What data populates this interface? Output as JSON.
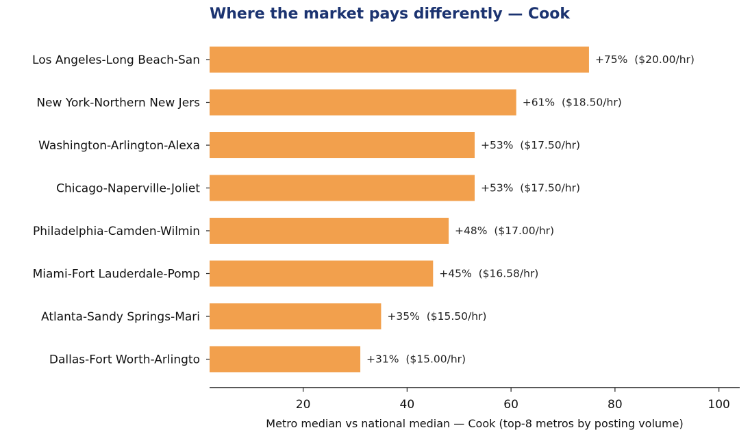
{
  "chart_data": {
    "type": "bar",
    "orientation": "horizontal",
    "title": "Where the market pays differently — Cook",
    "xlabel": "Metro median vs national median — Cook (top-8 metros by posting volume)",
    "ylabel": "",
    "xlim": [
      2,
      104
    ],
    "xticks": [
      20,
      40,
      60,
      80,
      100
    ],
    "grid": false,
    "bar_color": "#f2a04d",
    "title_color": "#1b3370",
    "categories": [
      "Los Angeles-Long Beach-San",
      "New York-Northern New Jers",
      "Washington-Arlington-Alexa",
      "Chicago-Naperville-Joliet",
      "Philadelphia-Camden-Wilmin",
      "Miami-Fort Lauderdale-Pomp",
      "Atlanta-Sandy Springs-Mari",
      "Dallas-Fort Worth-Arlingto"
    ],
    "values": [
      75,
      61,
      53,
      53,
      48,
      45,
      35,
      31
    ],
    "data_labels": [
      "+75%  ($20.00/hr)",
      "+61%  ($18.50/hr)",
      "+53%  ($17.50/hr)",
      "+53%  ($17.50/hr)",
      "+48%  ($17.00/hr)",
      "+45%  ($16.58/hr)",
      "+35%  ($15.50/hr)",
      "+31%  ($15.00/hr)"
    ]
  }
}
